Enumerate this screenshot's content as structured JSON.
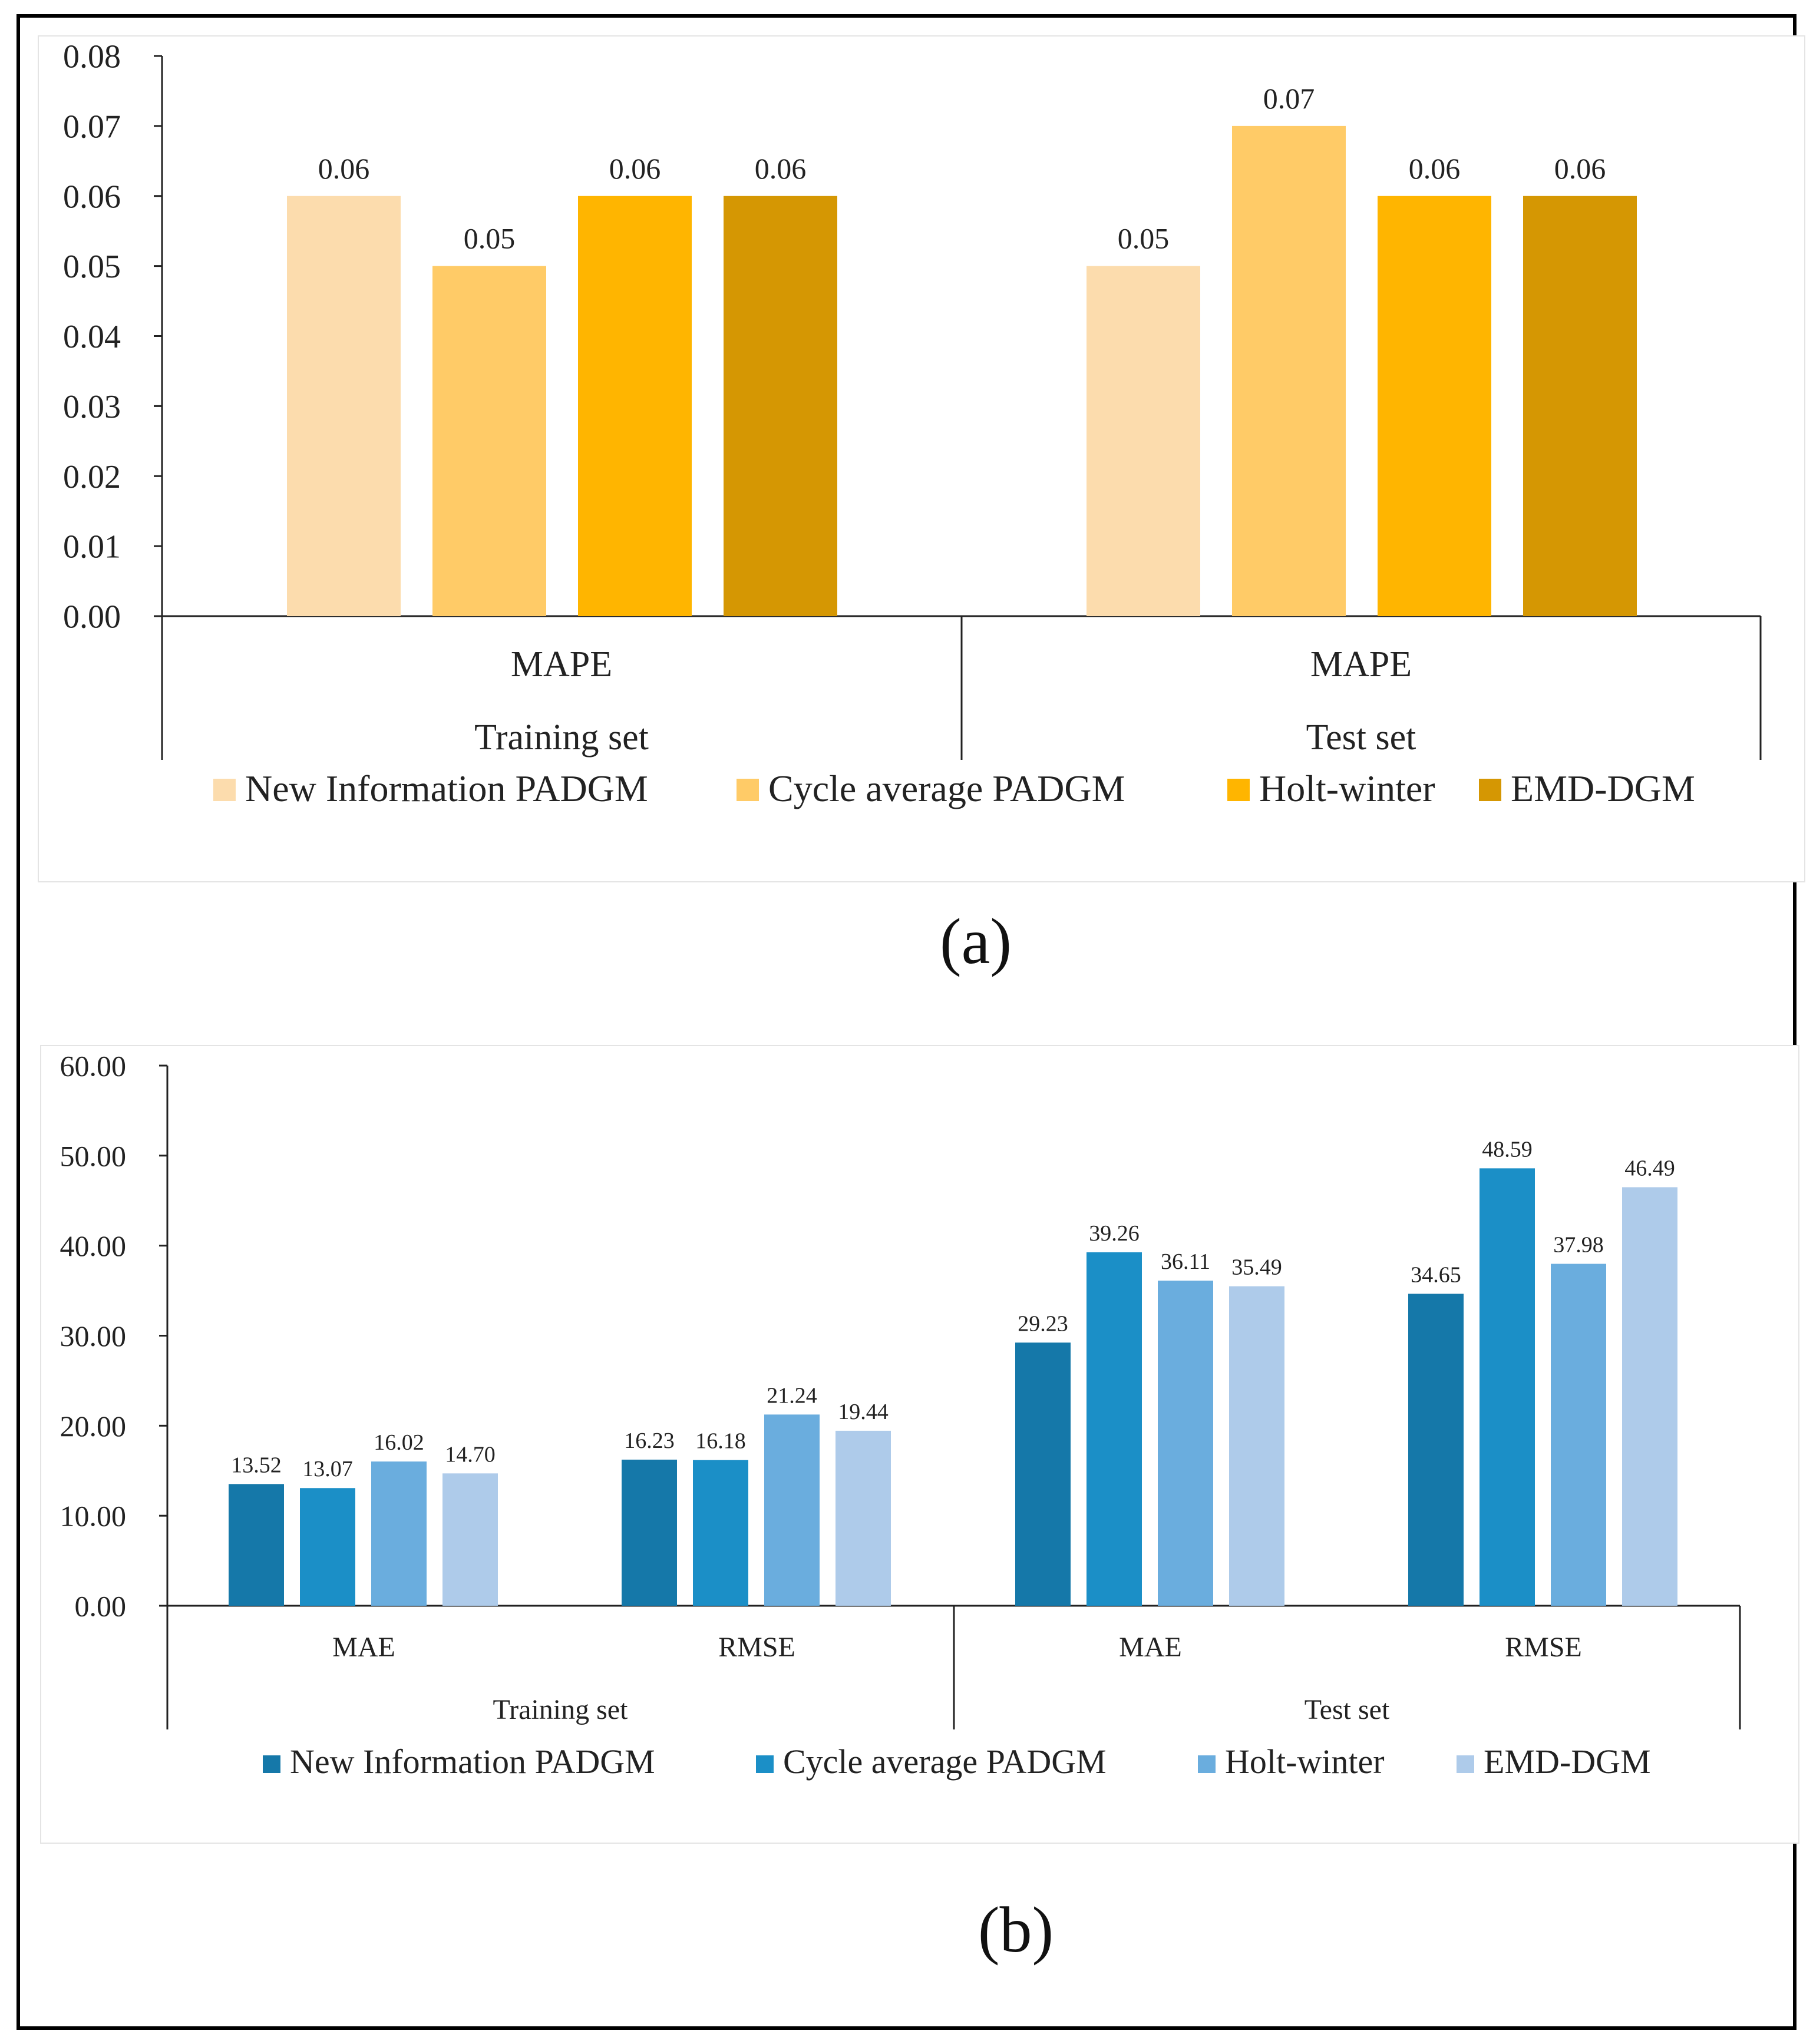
{
  "chart_data": [
    {
      "type": "bar",
      "panel": "(a)",
      "groups": [
        {
          "category": "MAPE",
          "group": "Training set"
        },
        {
          "category": "MAPE",
          "group": "Test set"
        }
      ],
      "tick_labels": [
        "0.00",
        "0.01",
        "0.02",
        "0.03",
        "0.04",
        "0.05",
        "0.06",
        "0.07",
        "0.08"
      ],
      "ylim": [
        0,
        0.08
      ],
      "series": [
        {
          "name": "New Information PADGM",
          "color": "#fcdcad",
          "values": [
            0.06,
            0.05
          ],
          "labels": [
            "0.06",
            "0.05"
          ]
        },
        {
          "name": "Cycle average PADGM",
          "color": "#ffcb67",
          "values": [
            0.05,
            0.07
          ],
          "labels": [
            "0.05",
            "0.07"
          ]
        },
        {
          "name": "Holt-winter",
          "color": "#ffb500",
          "values": [
            0.06,
            0.06
          ],
          "labels": [
            "0.06",
            "0.06"
          ]
        },
        {
          "name": "EMD-DGM",
          "color": "#d59703",
          "values": [
            0.06,
            0.06
          ],
          "labels": [
            "0.06",
            "0.06"
          ]
        }
      ],
      "legend": "bottom"
    },
    {
      "type": "bar",
      "panel": "(b)",
      "groups": [
        {
          "category": "MAE",
          "group": "Training set"
        },
        {
          "category": "RMSE",
          "group": "Training set"
        },
        {
          "category": "MAE",
          "group": "Test set"
        },
        {
          "category": "RMSE",
          "group": "Test set"
        }
      ],
      "group_labels": [
        "Training set",
        "Test set"
      ],
      "tick_labels": [
        "0.00",
        "10.00",
        "20.00",
        "30.00",
        "40.00",
        "50.00",
        "60.00"
      ],
      "ylim": [
        0,
        60
      ],
      "series": [
        {
          "name": "New Information PADGM",
          "color": "#1578a9",
          "values": [
            13.52,
            16.23,
            29.23,
            34.65
          ],
          "labels": [
            "13.52",
            "16.23",
            "29.23",
            "34.65"
          ]
        },
        {
          "name": "Cycle average PADGM",
          "color": "#1b8fc7",
          "values": [
            13.07,
            16.18,
            39.26,
            48.59
          ],
          "labels": [
            "13.07",
            "16.18",
            "39.26",
            "48.59"
          ]
        },
        {
          "name": "Holt-winter",
          "color": "#6aadde",
          "values": [
            16.02,
            21.24,
            36.11,
            37.98
          ],
          "labels": [
            "16.02",
            "21.24",
            "36.11",
            "37.98"
          ]
        },
        {
          "name": "EMD-DGM",
          "color": "#aecbea",
          "values": [
            14.7,
            19.44,
            35.49,
            46.49
          ],
          "labels": [
            "14.70",
            "19.44",
            "35.49",
            "46.49"
          ]
        }
      ],
      "legend": "bottom"
    }
  ]
}
